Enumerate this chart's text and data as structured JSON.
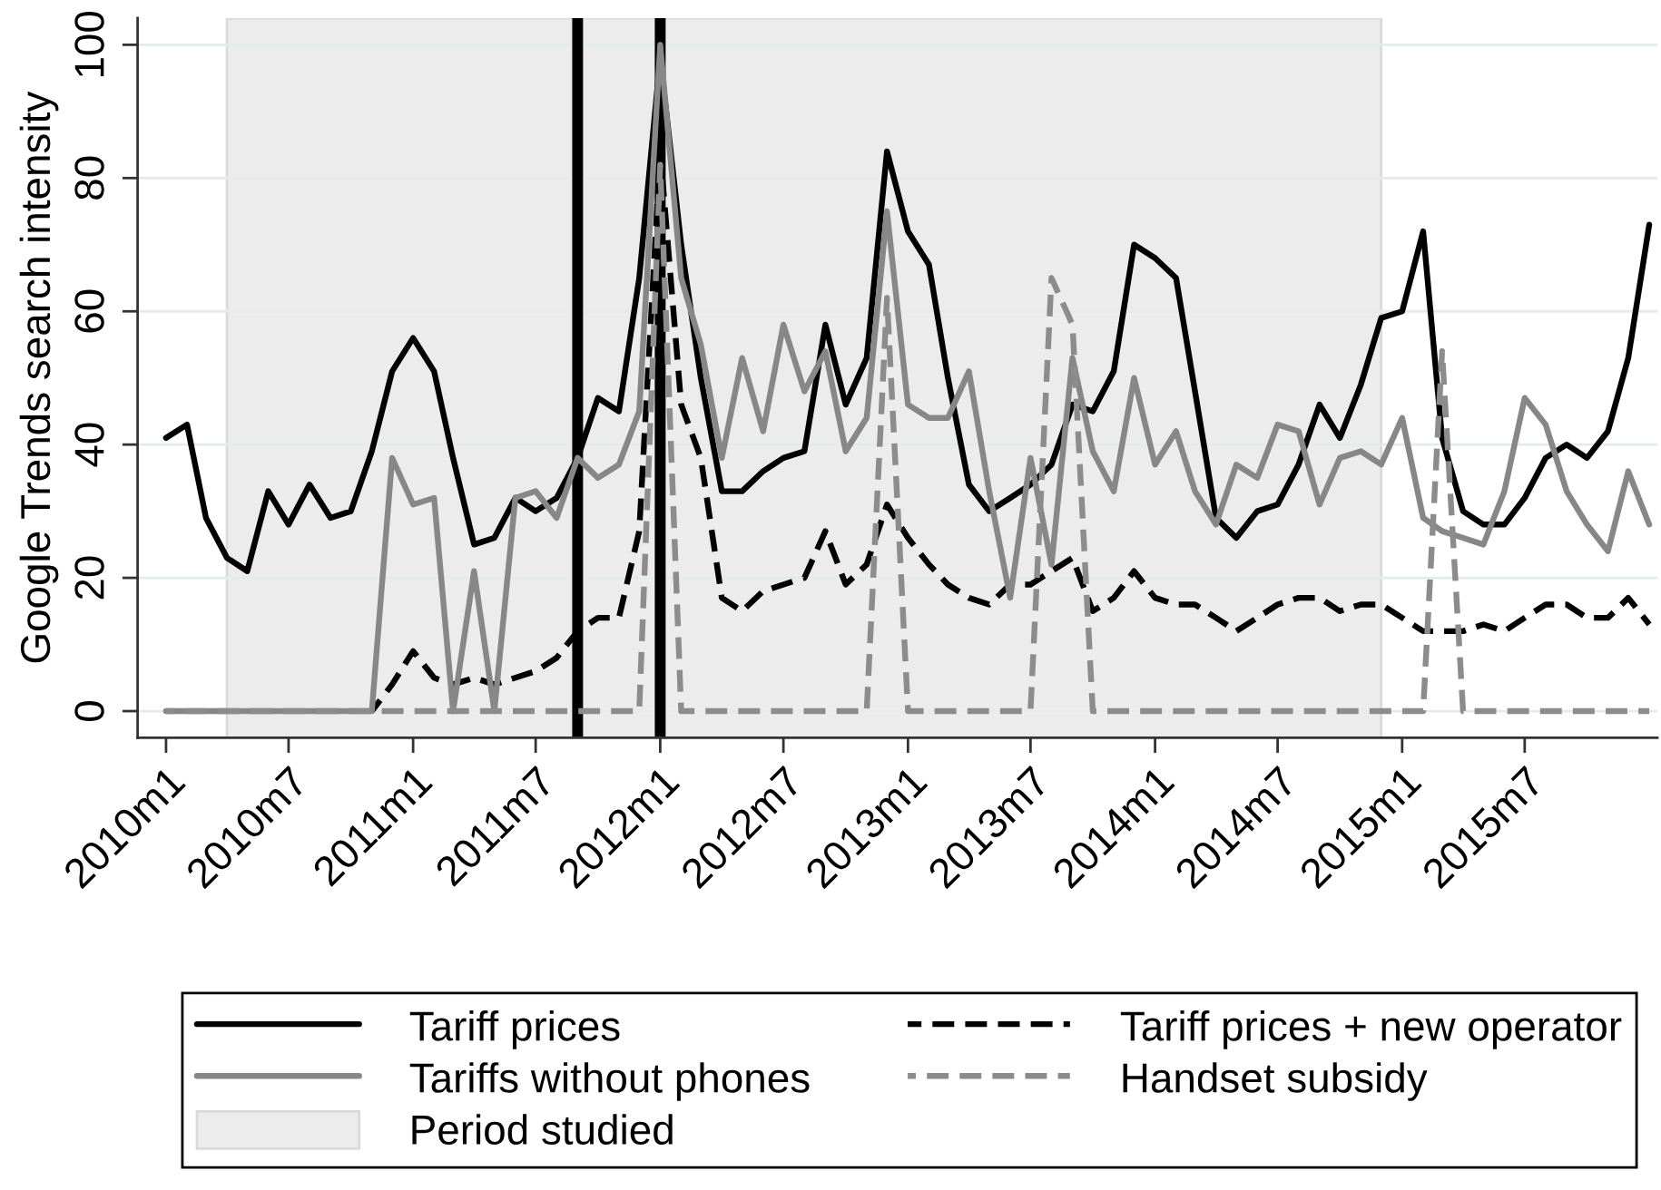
{
  "chart_data": {
    "type": "line",
    "ylabel": "Google Trends search intensity",
    "x": [
      "2010-01",
      "2010-02",
      "2010-03",
      "2010-04",
      "2010-05",
      "2010-06",
      "2010-07",
      "2010-08",
      "2010-09",
      "2010-10",
      "2010-11",
      "2010-12",
      "2011-01",
      "2011-02",
      "2011-03",
      "2011-04",
      "2011-05",
      "2011-06",
      "2011-07",
      "2011-08",
      "2011-09",
      "2011-10",
      "2011-11",
      "2011-12",
      "2012-01",
      "2012-02",
      "2012-03",
      "2012-04",
      "2012-05",
      "2012-06",
      "2012-07",
      "2012-08",
      "2012-09",
      "2012-10",
      "2012-11",
      "2012-12",
      "2013-01",
      "2013-02",
      "2013-03",
      "2013-04",
      "2013-05",
      "2013-06",
      "2013-07",
      "2013-08",
      "2013-09",
      "2013-10",
      "2013-11",
      "2013-12",
      "2014-01",
      "2014-02",
      "2014-03",
      "2014-04",
      "2014-05",
      "2014-06",
      "2014-07",
      "2014-08",
      "2014-09",
      "2014-10",
      "2014-11",
      "2014-12",
      "2015-01",
      "2015-02",
      "2015-03",
      "2015-04",
      "2015-05",
      "2015-06",
      "2015-07",
      "2015-08",
      "2015-09",
      "2015-10",
      "2015-11",
      "2015-12",
      "2016-01"
    ],
    "series": [
      {
        "name": "Tariff prices",
        "color": "#000000",
        "line_style": "solid",
        "values": [
          41,
          43,
          29,
          23,
          21,
          33,
          28,
          34,
          29,
          30,
          39,
          51,
          56,
          51,
          38,
          25,
          26,
          32,
          30,
          32,
          38,
          47,
          45,
          65,
          98,
          70,
          50,
          33,
          33,
          36,
          38,
          39,
          58,
          46,
          53,
          84,
          72,
          67,
          50,
          34,
          30,
          32,
          34,
          37,
          46,
          45,
          51,
          70,
          68,
          65,
          48,
          29,
          26,
          30,
          31,
          37,
          46,
          41,
          49,
          59,
          60,
          72,
          41,
          30,
          28,
          28,
          32,
          38,
          40,
          38,
          42,
          53,
          73
        ]
      },
      {
        "name": "Tariff prices + new operator",
        "color": "#000000",
        "line_style": "dashed",
        "values": [
          null,
          null,
          null,
          null,
          null,
          null,
          null,
          null,
          null,
          null,
          0,
          4,
          9,
          5,
          4,
          5,
          4,
          5,
          6,
          8,
          12,
          14,
          14,
          27,
          84,
          46,
          38,
          17,
          15,
          18,
          19,
          20,
          27,
          19,
          22,
          31,
          26,
          22,
          19,
          17,
          16,
          19,
          19,
          21,
          23,
          15,
          17,
          21,
          17,
          16,
          16,
          14,
          12,
          14,
          16,
          17,
          17,
          15,
          16,
          16,
          14,
          12,
          12,
          12,
          13,
          12,
          14,
          16,
          16,
          14,
          14,
          17,
          13
        ]
      },
      {
        "name": "Tariffs without phones",
        "color": "#878787",
        "line_style": "solid",
        "values": [
          0,
          0,
          0,
          0,
          0,
          0,
          0,
          0,
          0,
          0,
          0,
          38,
          31,
          32,
          0,
          21,
          0,
          32,
          33,
          29,
          38,
          35,
          37,
          45,
          100,
          65,
          55,
          38,
          53,
          42,
          58,
          48,
          54,
          39,
          44,
          75,
          46,
          44,
          44,
          51,
          33,
          17,
          38,
          22,
          53,
          39,
          33,
          50,
          37,
          42,
          33,
          28,
          37,
          35,
          43,
          42,
          31,
          38,
          39,
          37,
          44,
          29,
          27,
          26,
          25,
          33,
          47,
          43,
          33,
          28,
          24,
          36,
          28
        ]
      },
      {
        "name": "Handset subsidy",
        "color": "#8c8c8c",
        "line_style": "dashed",
        "values": [
          0,
          0,
          0,
          0,
          0,
          0,
          0,
          0,
          0,
          0,
          0,
          0,
          0,
          0,
          0,
          0,
          0,
          0,
          0,
          0,
          0,
          0,
          0,
          0,
          82,
          0,
          0,
          0,
          0,
          0,
          0,
          0,
          0,
          0,
          0,
          62,
          0,
          0,
          0,
          0,
          0,
          0,
          0,
          65,
          58,
          0,
          0,
          0,
          0,
          0,
          0,
          0,
          0,
          0,
          0,
          0,
          0,
          0,
          0,
          0,
          0,
          0,
          54,
          0,
          0,
          0,
          0,
          0,
          0,
          0,
          0,
          0,
          0
        ]
      }
    ],
    "xlim": [
      "2009-11-20",
      "2016-01-13"
    ],
    "xticks": [
      {
        "value": "2010-01",
        "label": "2010m1"
      },
      {
        "value": "2010-07",
        "label": "2010m7"
      },
      {
        "value": "2011-01",
        "label": "2011m1"
      },
      {
        "value": "2011-07",
        "label": "2011m7"
      },
      {
        "value": "2012-01",
        "label": "2012m1"
      },
      {
        "value": "2012-07",
        "label": "2012m7"
      },
      {
        "value": "2013-01",
        "label": "2013m1"
      },
      {
        "value": "2013-07",
        "label": "2013m7"
      },
      {
        "value": "2014-01",
        "label": "2014m1"
      },
      {
        "value": "2014-07",
        "label": "2014m7"
      },
      {
        "value": "2015-01",
        "label": "2015m1"
      },
      {
        "value": "2015-07",
        "label": "2015m7"
      }
    ],
    "ylim": [
      -4,
      104
    ],
    "yticks": [
      0,
      20,
      40,
      60,
      80,
      100
    ],
    "ref_lines": [
      {
        "axis": "x",
        "value": "2011-09",
        "color": "#000000"
      },
      {
        "axis": "x",
        "value": "2012-01",
        "color": "#000000"
      }
    ],
    "bands": [
      {
        "axis": "x",
        "from": "2010-04",
        "to": "2014-12",
        "label": "Period studied",
        "color": "#ececec"
      }
    ],
    "grid": "y",
    "legend": "bottom"
  }
}
